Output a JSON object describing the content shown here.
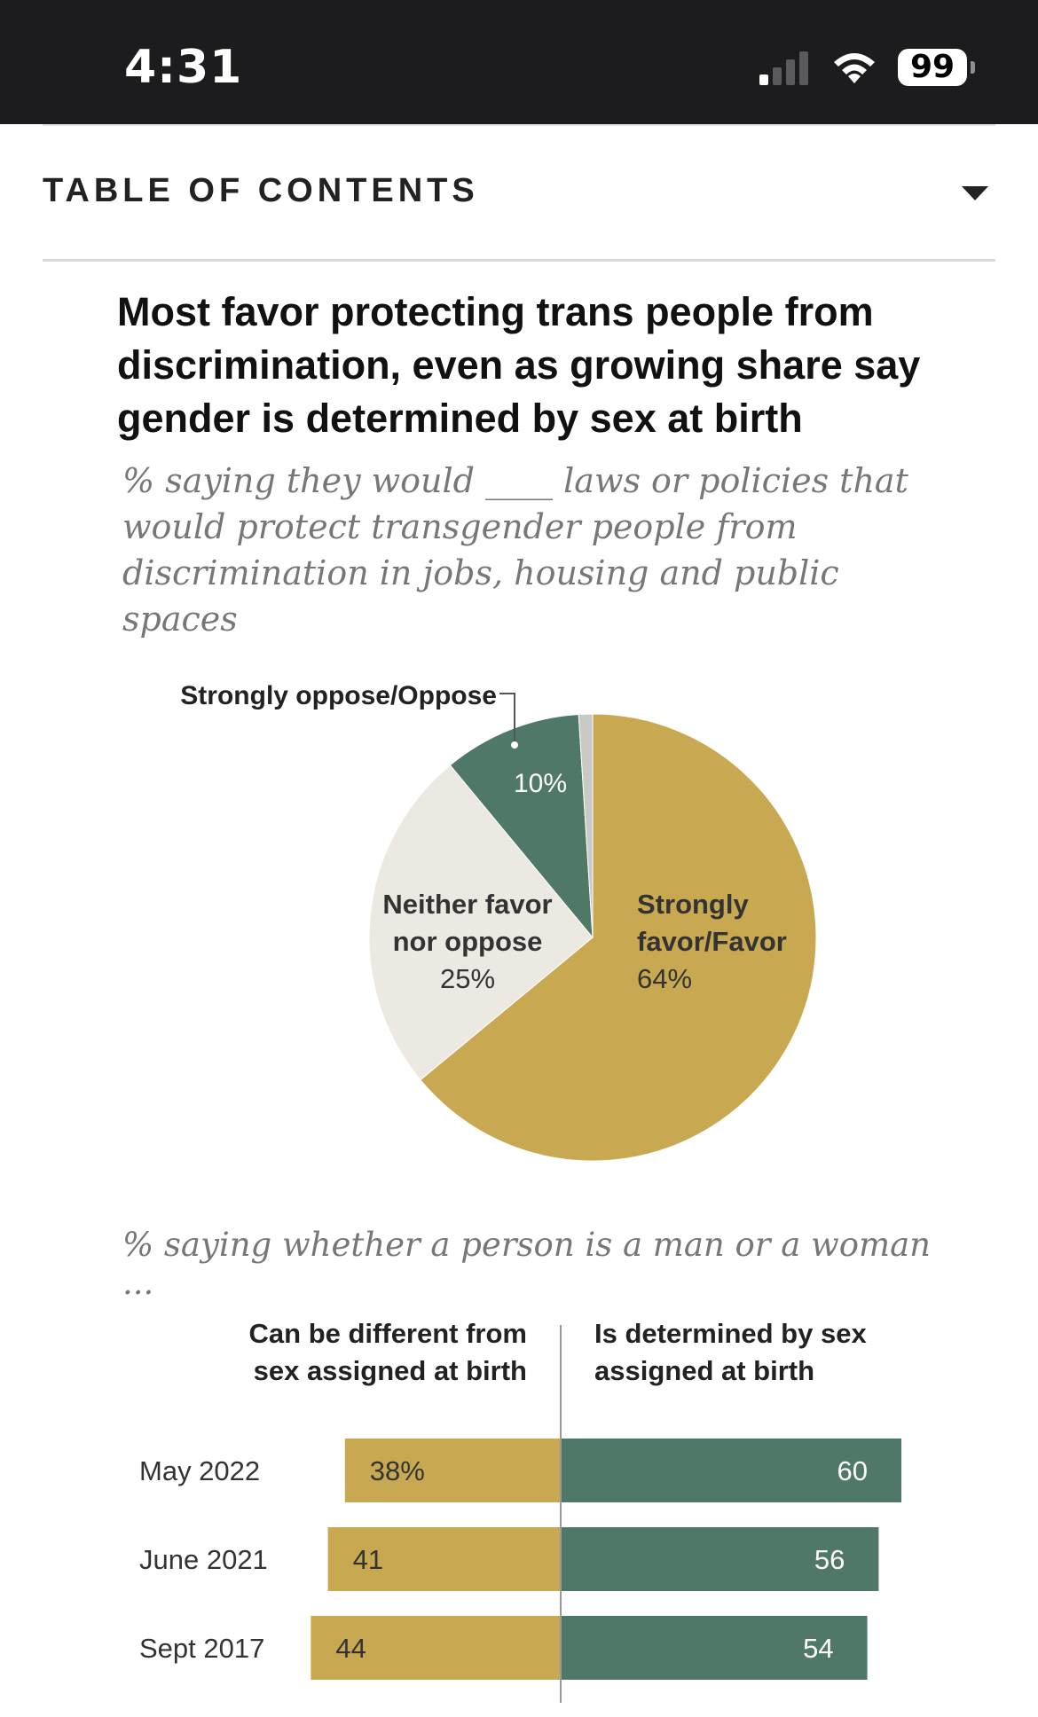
{
  "status_bar": {
    "time": "4:31",
    "battery": "99",
    "icons": [
      "cellular-signal-icon",
      "wifi-icon",
      "battery-icon"
    ]
  },
  "toc": {
    "label": "TABLE OF CONTENTS",
    "icon": "caret-down-icon"
  },
  "colors": {
    "favor": "#c8a951",
    "neither": "#ebe9e1",
    "oppose": "#507868",
    "no_answer": "#c9c9c9"
  },
  "chart_data": [
    {
      "type": "pie",
      "title": "Most favor protecting trans people from discrimination, even as growing share say gender is determined by sex at birth",
      "subtitle": "% saying they would ____ laws or policies that would protect transgender people from discrimination in jobs, housing and public spaces",
      "slices": [
        {
          "label": "Strongly favor/Favor",
          "value": 64,
          "display": "64%"
        },
        {
          "label": "Neither favor nor oppose",
          "value": 25,
          "display": "25%"
        },
        {
          "label": "Strongly oppose/Oppose",
          "value": 10,
          "display": "10%"
        },
        {
          "label": "",
          "value": 1,
          "display": ""
        }
      ]
    },
    {
      "type": "bar",
      "subtitle": "% saying whether a person is a man or a woman ...",
      "categories": [
        "May 2022",
        "June 2021",
        "Sept 2017"
      ],
      "series": [
        {
          "name": "Can be different from sex assigned at birth",
          "values": [
            38,
            41,
            44
          ],
          "labels": [
            "38%",
            "41",
            "44"
          ]
        },
        {
          "name": "Is determined by sex assigned at birth",
          "values": [
            60,
            56,
            54
          ],
          "labels": [
            "60",
            "56",
            "54"
          ]
        }
      ]
    }
  ]
}
